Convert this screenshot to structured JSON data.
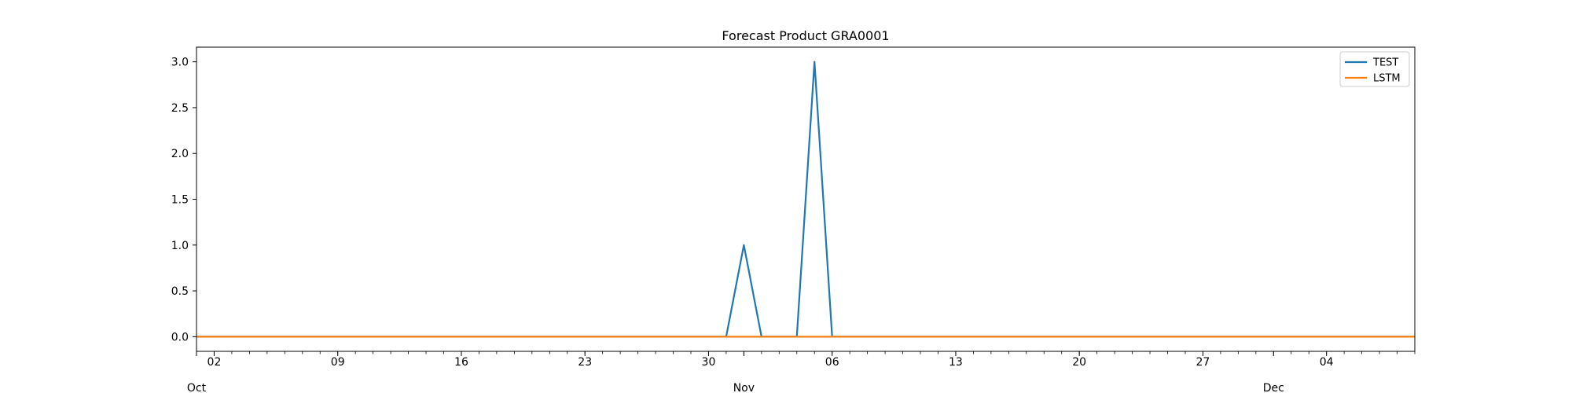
{
  "chart_data": {
    "type": "line",
    "title": "Forecast Product GRA0001",
    "xlabel": "",
    "ylabel": "",
    "ylim": [
      -0.16,
      3.16
    ],
    "xlim": [
      "2023-10-01",
      "2023-12-09"
    ],
    "yticks": [
      0.0,
      0.5,
      1.0,
      1.5,
      2.0,
      2.5,
      3.0
    ],
    "ytick_labels": [
      "0.0",
      "0.5",
      "1.0",
      "1.5",
      "2.0",
      "2.5",
      "3.0"
    ],
    "xticks_major": [
      {
        "date": "2023-10-02",
        "label": "02"
      },
      {
        "date": "2023-10-09",
        "label": "09"
      },
      {
        "date": "2023-10-16",
        "label": "16"
      },
      {
        "date": "2023-10-23",
        "label": "23"
      },
      {
        "date": "2023-10-30",
        "label": "30"
      },
      {
        "date": "2023-11-06",
        "label": "06"
      },
      {
        "date": "2023-11-13",
        "label": "13"
      },
      {
        "date": "2023-11-20",
        "label": "20"
      },
      {
        "date": "2023-11-27",
        "label": "27"
      },
      {
        "date": "2023-12-04",
        "label": "04"
      }
    ],
    "month_labels": [
      {
        "date": "2023-10-01",
        "label": "Oct"
      },
      {
        "date": "2023-11-01",
        "label": "Nov"
      },
      {
        "date": "2023-12-01",
        "label": "Dec"
      }
    ],
    "legend_position": "top-right",
    "grid": false,
    "series": [
      {
        "name": "TEST",
        "color": "#1f77b4",
        "points": [
          {
            "x": "2023-10-01",
            "y": 0
          },
          {
            "x": "2023-10-31",
            "y": 0
          },
          {
            "x": "2023-11-01",
            "y": 1
          },
          {
            "x": "2023-11-02",
            "y": 0
          },
          {
            "x": "2023-11-04",
            "y": 0
          },
          {
            "x": "2023-11-05",
            "y": 3
          },
          {
            "x": "2023-11-06",
            "y": 0
          },
          {
            "x": "2023-12-09",
            "y": 0
          }
        ]
      },
      {
        "name": "LSTM",
        "color": "#ff7f0e",
        "points": [
          {
            "x": "2023-10-01",
            "y": 0
          },
          {
            "x": "2023-12-09",
            "y": 0
          }
        ]
      }
    ]
  }
}
